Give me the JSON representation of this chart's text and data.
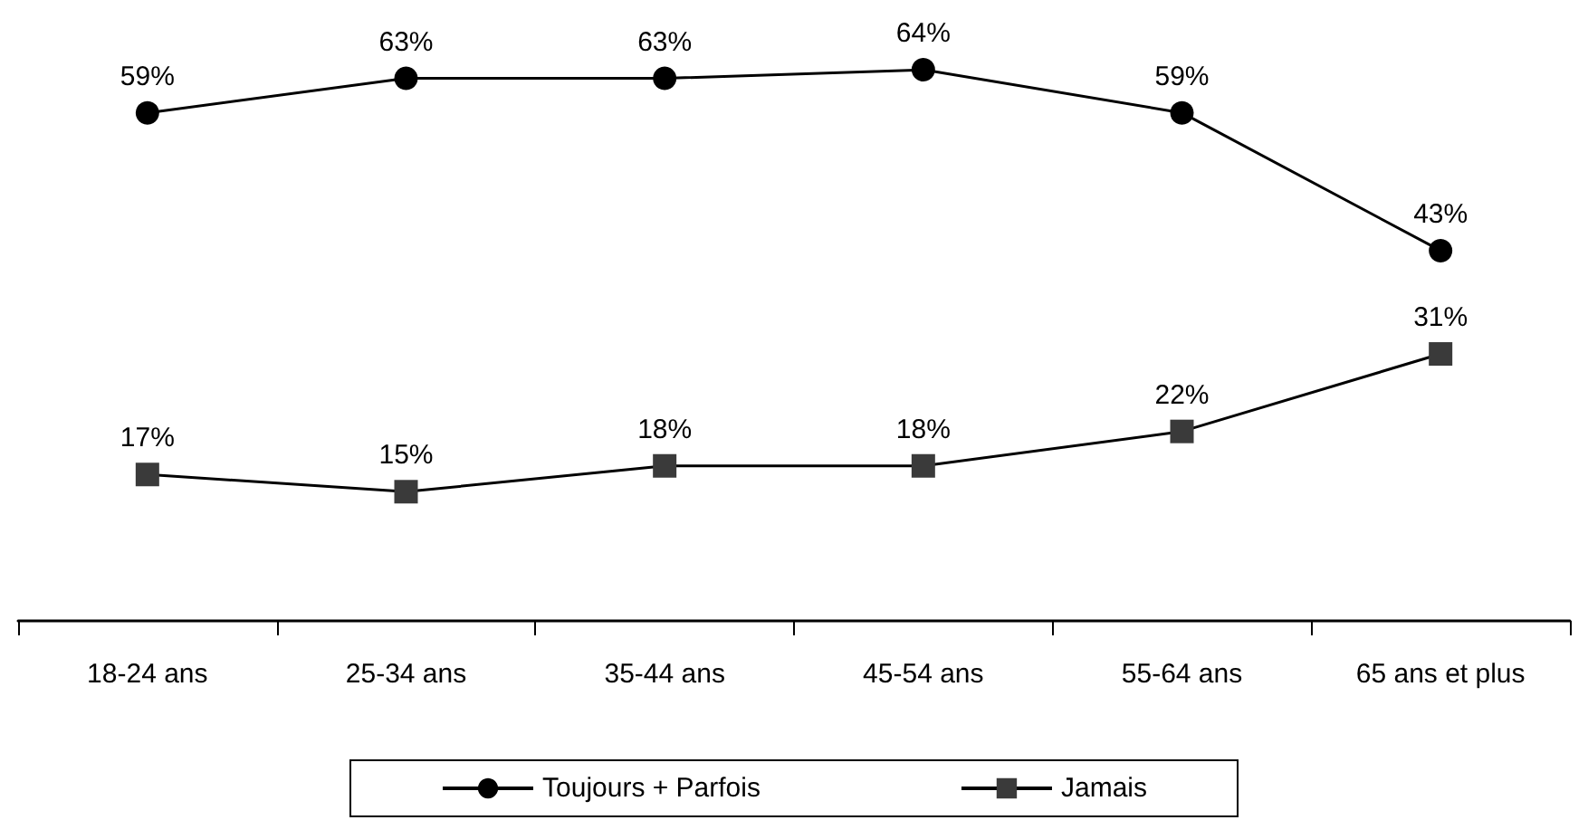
{
  "chart_data": {
    "type": "line",
    "categories": [
      "18-24 ans",
      "25-34 ans",
      "35-44 ans",
      "45-54 ans",
      "55-64 ans",
      "65 ans et plus"
    ],
    "series": [
      {
        "name": "Toujours + Parfois",
        "color": "#000000",
        "marker": "circle",
        "values": [
          59,
          63,
          63,
          64,
          59,
          43
        ],
        "value_labels": [
          "59%",
          "63%",
          "63%",
          "64%",
          "59%",
          "43%"
        ]
      },
      {
        "name": "Jamais",
        "color": "#3a3a3a",
        "marker": "square",
        "values": [
          17,
          15,
          18,
          18,
          22,
          31
        ],
        "value_labels": [
          "17%",
          "15%",
          "18%",
          "18%",
          "22%",
          "31%"
        ]
      }
    ],
    "tick_labels": "x",
    "grid": false,
    "legend": "bottom",
    "line_style": "solid"
  }
}
